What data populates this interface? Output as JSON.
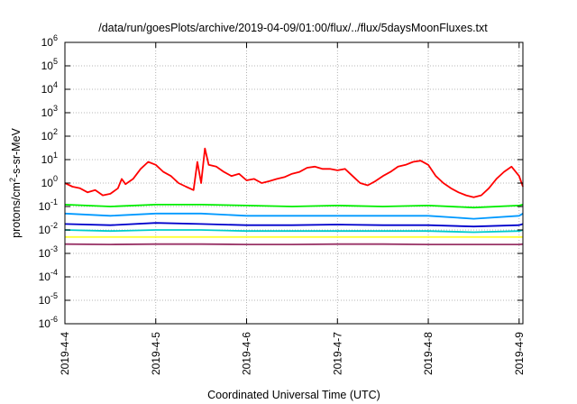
{
  "chart_data": {
    "type": "line",
    "title": "/data/run/goesPlots/archive/2019-04-09/01:00/flux/../flux/5daysMoonFluxes.txt",
    "xlabel": "Coordinated Universal Time (UTC)",
    "ylabel": "protons/cm2-s-sr-MeV",
    "ylabel_parts": {
      "pre": "protons/cm",
      "sup": "2",
      "post": "-s-sr-MeV"
    },
    "yscale": "log",
    "ylim": [
      1e-06,
      1000000.0
    ],
    "y_ticks": [
      {
        "value": 1e-06,
        "base": "10",
        "exp": "-6"
      },
      {
        "value": 1e-05,
        "base": "10",
        "exp": "-5"
      },
      {
        "value": 0.0001,
        "base": "10",
        "exp": "-4"
      },
      {
        "value": 0.001,
        "base": "10",
        "exp": "-3"
      },
      {
        "value": 0.01,
        "base": "10",
        "exp": "-2"
      },
      {
        "value": 0.1,
        "base": "10",
        "exp": "-1"
      },
      {
        "value": 1,
        "base": "10",
        "exp": "0"
      },
      {
        "value": 10,
        "base": "10",
        "exp": "1"
      },
      {
        "value": 100,
        "base": "10",
        "exp": "2"
      },
      {
        "value": 1000,
        "base": "10",
        "exp": "3"
      },
      {
        "value": 10000,
        "base": "10",
        "exp": "4"
      },
      {
        "value": 100000,
        "base": "10",
        "exp": "5"
      },
      {
        "value": 1000000,
        "base": "10",
        "exp": "6"
      }
    ],
    "xlim": [
      "2019-04-04 00:00",
      "2019-04-09 01:00"
    ],
    "x_ticks": [
      {
        "value": "2019-04-04 00:00",
        "label": "2019-4-4"
      },
      {
        "value": "2019-04-05 00:00",
        "label": "2019-4-5"
      },
      {
        "value": "2019-04-06 00:00",
        "label": "2019-4-6"
      },
      {
        "value": "2019-04-07 00:00",
        "label": "2019-4-7"
      },
      {
        "value": "2019-04-08 00:00",
        "label": "2019-4-8"
      },
      {
        "value": "2019-04-09 00:00",
        "label": "2019-4-9"
      }
    ],
    "grid": true,
    "legend": "none",
    "series": [
      {
        "color": "#ff0000",
        "values": [
          [
            "2019-04-04 00:00",
            1.0
          ],
          [
            "2019-04-04 02:00",
            0.7
          ],
          [
            "2019-04-04 04:00",
            0.6
          ],
          [
            "2019-04-04 06:00",
            0.4
          ],
          [
            "2019-04-04 08:00",
            0.5
          ],
          [
            "2019-04-04 10:00",
            0.3
          ],
          [
            "2019-04-04 12:00",
            0.35
          ],
          [
            "2019-04-04 14:00",
            0.6
          ],
          [
            "2019-04-04 15:00",
            1.5
          ],
          [
            "2019-04-04 16:00",
            0.9
          ],
          [
            "2019-04-04 18:00",
            1.5
          ],
          [
            "2019-04-04 20:00",
            4.0
          ],
          [
            "2019-04-04 22:00",
            8.0
          ],
          [
            "2019-04-05 00:00",
            6.0
          ],
          [
            "2019-04-05 02:00",
            3.0
          ],
          [
            "2019-04-05 04:00",
            2.0
          ],
          [
            "2019-04-05 06:00",
            1.0
          ],
          [
            "2019-04-05 08:00",
            0.7
          ],
          [
            "2019-04-05 10:00",
            0.5
          ],
          [
            "2019-04-05 11:00",
            8.0
          ],
          [
            "2019-04-05 12:00",
            1.0
          ],
          [
            "2019-04-05 13:00",
            30.0
          ],
          [
            "2019-04-05 14:00",
            6.0
          ],
          [
            "2019-04-05 16:00",
            5.0
          ],
          [
            "2019-04-05 18:00",
            3.0
          ],
          [
            "2019-04-05 20:00",
            2.0
          ],
          [
            "2019-04-05 22:00",
            2.5
          ],
          [
            "2019-04-06 00:00",
            1.3
          ],
          [
            "2019-04-06 02:00",
            1.5
          ],
          [
            "2019-04-06 04:00",
            1.0
          ],
          [
            "2019-04-06 06:00",
            1.2
          ],
          [
            "2019-04-06 08:00",
            1.5
          ],
          [
            "2019-04-06 10:00",
            1.8
          ],
          [
            "2019-04-06 12:00",
            2.5
          ],
          [
            "2019-04-06 14:00",
            3.0
          ],
          [
            "2019-04-06 16:00",
            4.5
          ],
          [
            "2019-04-06 18:00",
            5.0
          ],
          [
            "2019-04-06 20:00",
            4.0
          ],
          [
            "2019-04-06 22:00",
            4.0
          ],
          [
            "2019-04-07 00:00",
            3.5
          ],
          [
            "2019-04-07 02:00",
            4.0
          ],
          [
            "2019-04-07 04:00",
            2.0
          ],
          [
            "2019-04-07 06:00",
            1.0
          ],
          [
            "2019-04-07 08:00",
            0.8
          ],
          [
            "2019-04-07 10:00",
            1.2
          ],
          [
            "2019-04-07 12:00",
            2.0
          ],
          [
            "2019-04-07 14:00",
            3.0
          ],
          [
            "2019-04-07 16:00",
            5.0
          ],
          [
            "2019-04-07 18:00",
            6.0
          ],
          [
            "2019-04-07 20:00",
            8.0
          ],
          [
            "2019-04-07 22:00",
            9.0
          ],
          [
            "2019-04-08 00:00",
            6.0
          ],
          [
            "2019-04-08 02:00",
            2.0
          ],
          [
            "2019-04-08 04:00",
            1.0
          ],
          [
            "2019-04-08 06:00",
            0.6
          ],
          [
            "2019-04-08 08:00",
            0.4
          ],
          [
            "2019-04-08 10:00",
            0.3
          ],
          [
            "2019-04-08 12:00",
            0.25
          ],
          [
            "2019-04-08 14:00",
            0.3
          ],
          [
            "2019-04-08 16:00",
            0.6
          ],
          [
            "2019-04-08 18:00",
            1.5
          ],
          [
            "2019-04-08 20:00",
            3.0
          ],
          [
            "2019-04-08 22:00",
            5.0
          ],
          [
            "2019-04-09 00:00",
            2.0
          ],
          [
            "2019-04-09 01:00",
            0.7
          ]
        ]
      },
      {
        "color": "#00ee00",
        "values": [
          [
            "2019-04-04 00:00",
            0.12
          ],
          [
            "2019-04-04 12:00",
            0.1
          ],
          [
            "2019-04-05 00:00",
            0.12
          ],
          [
            "2019-04-05 12:00",
            0.12
          ],
          [
            "2019-04-06 00:00",
            0.11
          ],
          [
            "2019-04-06 12:00",
            0.1
          ],
          [
            "2019-04-07 00:00",
            0.11
          ],
          [
            "2019-04-07 12:00",
            0.1
          ],
          [
            "2019-04-08 00:00",
            0.11
          ],
          [
            "2019-04-08 12:00",
            0.09
          ],
          [
            "2019-04-09 00:00",
            0.11
          ],
          [
            "2019-04-09 01:00",
            0.12
          ]
        ]
      },
      {
        "color": "#0099ff",
        "values": [
          [
            "2019-04-04 00:00",
            0.05
          ],
          [
            "2019-04-04 12:00",
            0.04
          ],
          [
            "2019-04-05 00:00",
            0.05
          ],
          [
            "2019-04-05 12:00",
            0.05
          ],
          [
            "2019-04-06 00:00",
            0.04
          ],
          [
            "2019-04-06 12:00",
            0.04
          ],
          [
            "2019-04-07 00:00",
            0.04
          ],
          [
            "2019-04-07 12:00",
            0.04
          ],
          [
            "2019-04-08 00:00",
            0.04
          ],
          [
            "2019-04-08 12:00",
            0.03
          ],
          [
            "2019-04-09 00:00",
            0.04
          ],
          [
            "2019-04-09 01:00",
            0.05
          ]
        ]
      },
      {
        "color": "#0000cc",
        "values": [
          [
            "2019-04-04 00:00",
            0.018
          ],
          [
            "2019-04-04 12:00",
            0.016
          ],
          [
            "2019-04-05 00:00",
            0.02
          ],
          [
            "2019-04-05 12:00",
            0.018
          ],
          [
            "2019-04-06 00:00",
            0.016
          ],
          [
            "2019-04-06 12:00",
            0.016
          ],
          [
            "2019-04-07 00:00",
            0.017
          ],
          [
            "2019-04-07 12:00",
            0.016
          ],
          [
            "2019-04-08 00:00",
            0.016
          ],
          [
            "2019-04-08 12:00",
            0.014
          ],
          [
            "2019-04-09 00:00",
            0.016
          ],
          [
            "2019-04-09 01:00",
            0.018
          ]
        ]
      },
      {
        "color": "#00cccc",
        "values": [
          [
            "2019-04-04 00:00",
            0.01
          ],
          [
            "2019-04-04 12:00",
            0.009
          ],
          [
            "2019-04-05 00:00",
            0.01
          ],
          [
            "2019-04-05 12:00",
            0.01
          ],
          [
            "2019-04-06 00:00",
            0.009
          ],
          [
            "2019-04-06 12:00",
            0.009
          ],
          [
            "2019-04-07 00:00",
            0.009
          ],
          [
            "2019-04-07 12:00",
            0.009
          ],
          [
            "2019-04-08 00:00",
            0.009
          ],
          [
            "2019-04-08 12:00",
            0.008
          ],
          [
            "2019-04-09 00:00",
            0.009
          ],
          [
            "2019-04-09 01:00",
            0.01
          ]
        ]
      },
      {
        "color": "#ffff33",
        "values": [
          [
            "2019-04-04 00:00",
            0.005
          ],
          [
            "2019-04-04 12:00",
            0.005
          ],
          [
            "2019-04-05 00:00",
            0.005
          ],
          [
            "2019-04-05 12:00",
            0.005
          ],
          [
            "2019-04-06 00:00",
            0.005
          ],
          [
            "2019-04-06 12:00",
            0.005
          ],
          [
            "2019-04-07 00:00",
            0.005
          ],
          [
            "2019-04-07 12:00",
            0.005
          ],
          [
            "2019-04-08 00:00",
            0.005
          ],
          [
            "2019-04-08 12:00",
            0.005
          ],
          [
            "2019-04-09 00:00",
            0.005
          ],
          [
            "2019-04-09 01:00",
            0.005
          ]
        ]
      },
      {
        "color": "#993366",
        "values": [
          [
            "2019-04-04 00:00",
            0.0025
          ],
          [
            "2019-04-04 12:00",
            0.0024
          ],
          [
            "2019-04-05 00:00",
            0.0025
          ],
          [
            "2019-04-05 12:00",
            0.0025
          ],
          [
            "2019-04-06 00:00",
            0.0024
          ],
          [
            "2019-04-06 12:00",
            0.0024
          ],
          [
            "2019-04-07 00:00",
            0.0025
          ],
          [
            "2019-04-07 12:00",
            0.0025
          ],
          [
            "2019-04-08 00:00",
            0.0024
          ],
          [
            "2019-04-08 12:00",
            0.0024
          ],
          [
            "2019-04-09 00:00",
            0.0024
          ],
          [
            "2019-04-09 01:00",
            0.0025
          ]
        ]
      }
    ]
  }
}
